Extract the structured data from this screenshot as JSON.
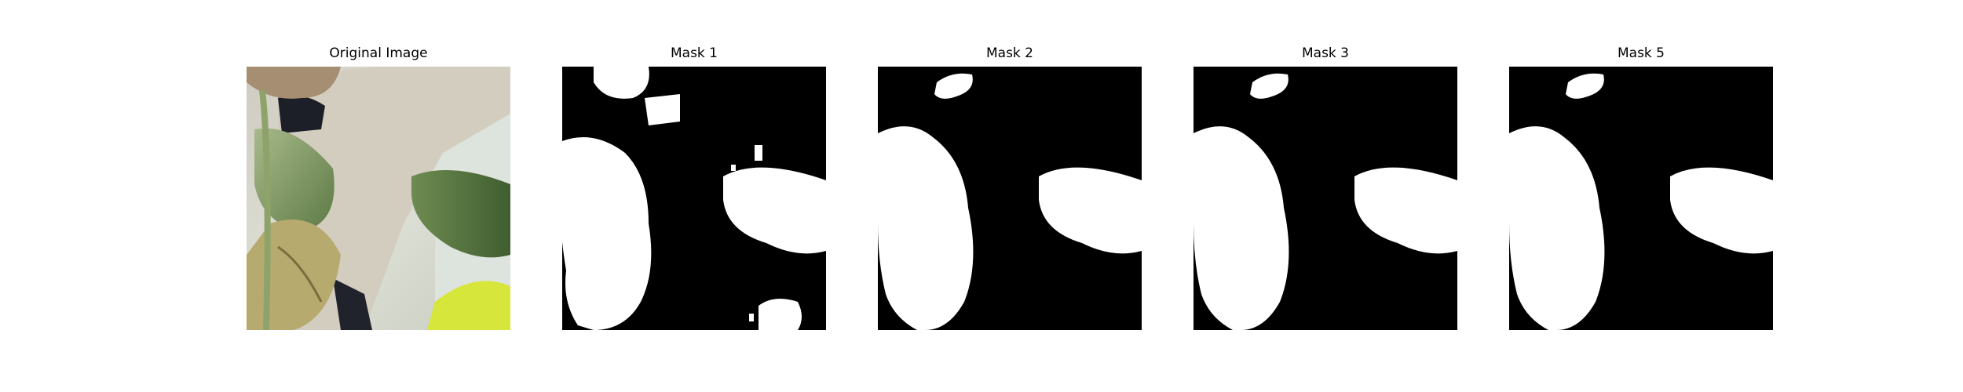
{
  "panels": [
    {
      "title": "Original Image",
      "kind": "photo"
    },
    {
      "title": "Mask 1",
      "kind": "mask"
    },
    {
      "title": "Mask 2",
      "kind": "mask"
    },
    {
      "title": "Mask 3",
      "kind": "mask"
    },
    {
      "title": "Mask 5",
      "kind": "mask"
    }
  ],
  "colors": {
    "mask_background": "#000000",
    "mask_foreground": "#ffffff",
    "leaf_green": "#7e9a5f",
    "leaf_dark": "#4f6d3a",
    "wall": "#d9dcd0",
    "lime": "#d6e63a"
  }
}
